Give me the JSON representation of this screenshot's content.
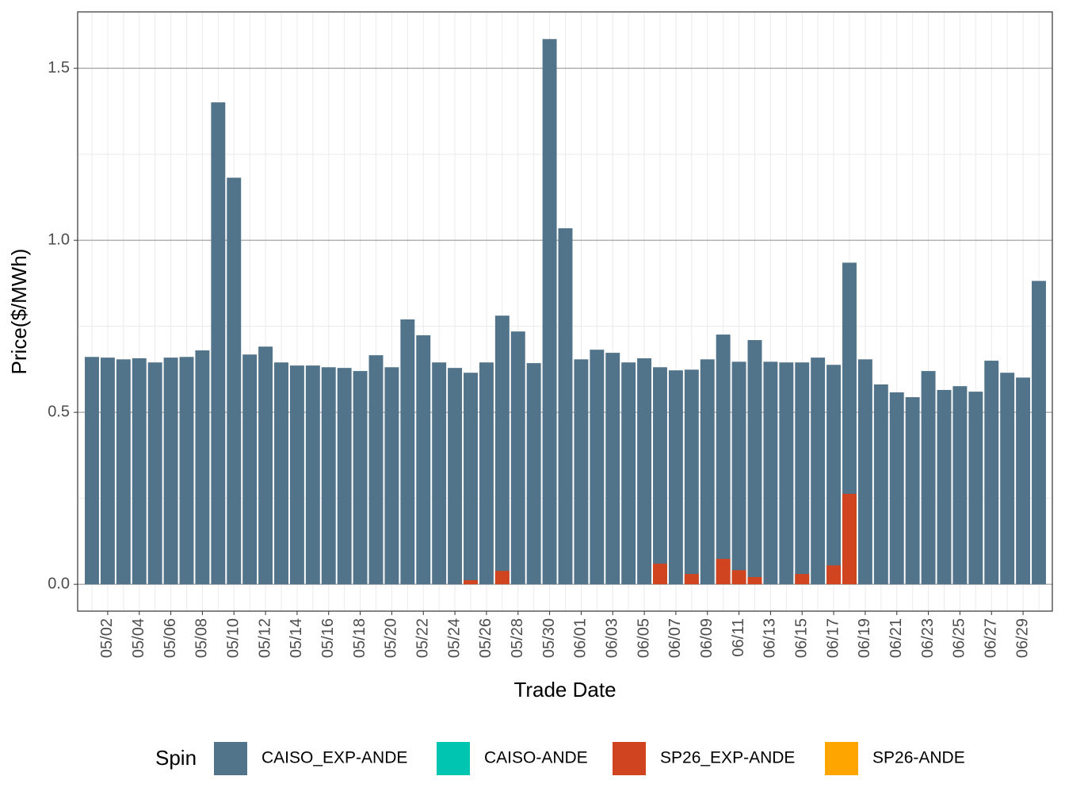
{
  "chart_data": {
    "type": "bar",
    "x_label": "Trade Date",
    "y_label": "Price($/MWh)",
    "legend_title": "Spin",
    "legend_position": "bottom",
    "grid": true,
    "categories": [
      null,
      "05/02",
      null,
      "05/04",
      null,
      "05/06",
      null,
      "05/08",
      null,
      "05/10",
      null,
      "05/12",
      null,
      "05/14",
      null,
      "05/16",
      null,
      "05/18",
      null,
      "05/20",
      null,
      "05/22",
      null,
      "05/24",
      null,
      "05/26",
      null,
      "05/28",
      null,
      "05/30",
      null,
      "06/01",
      null,
      "06/03",
      null,
      "06/05",
      null,
      "06/07",
      null,
      "06/09",
      null,
      "06/11",
      null,
      "06/13",
      null,
      "06/15",
      null,
      "06/17",
      null,
      "06/19",
      null,
      "06/21",
      null,
      "06/23",
      null,
      "06/25",
      null,
      "06/27",
      null,
      "06/29",
      null
    ],
    "ylim": [
      -0.078,
      1.664
    ],
    "yticks": [
      {
        "value": 0,
        "label": "0.0"
      },
      {
        "value": 0.5,
        "label": "0.5"
      },
      {
        "value": 1,
        "label": "1.0"
      },
      {
        "value": 1.5,
        "label": "1.5"
      }
    ],
    "series": [
      {
        "name": "CAISO_EXP-ANDE",
        "color": "#51748a",
        "values": [
          0.661,
          0.659,
          0.654,
          0.657,
          0.645,
          0.659,
          0.661,
          0.68,
          1.401,
          1.182,
          0.668,
          0.691,
          0.645,
          0.636,
          0.636,
          0.631,
          0.629,
          0.62,
          0.666,
          0.631,
          0.77,
          0.724,
          0.645,
          0.629,
          0.615,
          0.645,
          0.781,
          0.735,
          0.643,
          1.585,
          1.035,
          0.654,
          0.682,
          0.673,
          0.645,
          0.657,
          0.631,
          0.622,
          0.624,
          0.654,
          0.726,
          0.647,
          0.71,
          0.647,
          0.645,
          0.645,
          0.659,
          0.638,
          0.935,
          0.654,
          0.581,
          0.558,
          0.544,
          0.62,
          0.565,
          0.576,
          0.56,
          0.65,
          0.615,
          0.601,
          0.882
        ]
      },
      {
        "name": "CAISO-ANDE",
        "color": "#00c5b0",
        "values": [
          null,
          null,
          null,
          null,
          null,
          null,
          null,
          null,
          null,
          null,
          null,
          null,
          null,
          null,
          null,
          null,
          null,
          null,
          null,
          null,
          null,
          null,
          null,
          null,
          null,
          null,
          null,
          null,
          null,
          null,
          null,
          null,
          null,
          null,
          null,
          null,
          null,
          null,
          null,
          null,
          null,
          null,
          null,
          null,
          null,
          null,
          null,
          null,
          null,
          null,
          null,
          null,
          null,
          null,
          null,
          null,
          null,
          null,
          null,
          null,
          null
        ]
      },
      {
        "name": "SP26_EXP-ANDE",
        "color": "#d04420",
        "values": [
          null,
          null,
          null,
          null,
          null,
          null,
          null,
          null,
          null,
          null,
          null,
          null,
          null,
          null,
          null,
          null,
          null,
          null,
          null,
          null,
          null,
          null,
          null,
          null,
          0.012,
          null,
          0.039,
          null,
          null,
          null,
          null,
          null,
          null,
          null,
          null,
          null,
          0.06,
          null,
          0.03,
          null,
          0.074,
          0.041,
          0.021,
          null,
          null,
          0.03,
          null,
          0.055,
          0.263,
          null,
          null,
          null,
          null,
          null,
          null,
          null,
          null,
          null,
          null,
          null,
          null
        ]
      },
      {
        "name": "SP26-ANDE",
        "color": "#ffa500",
        "values": [
          null,
          null,
          null,
          null,
          null,
          null,
          null,
          null,
          null,
          null,
          null,
          null,
          null,
          null,
          null,
          null,
          null,
          null,
          null,
          null,
          null,
          null,
          null,
          null,
          null,
          null,
          null,
          null,
          null,
          null,
          null,
          null,
          null,
          null,
          null,
          null,
          null,
          null,
          null,
          null,
          null,
          null,
          null,
          null,
          null,
          null,
          null,
          null,
          null,
          null,
          null,
          null,
          null,
          null,
          null,
          null,
          null,
          null,
          null,
          null,
          null
        ]
      }
    ]
  }
}
